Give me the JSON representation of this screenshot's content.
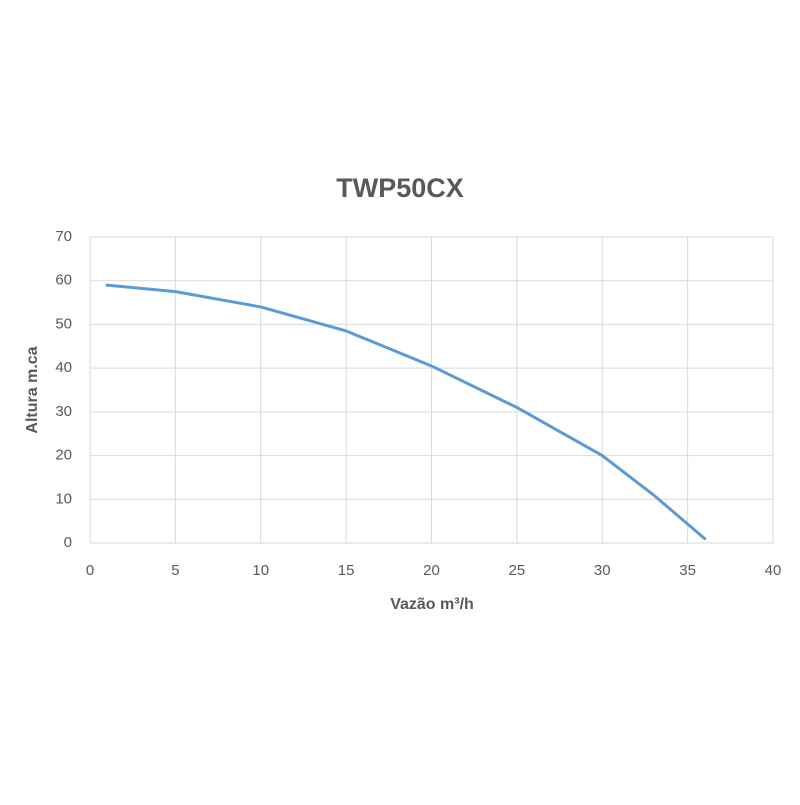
{
  "chart_data": {
    "type": "line",
    "title": "TWP50CX",
    "x_label": "Vazão m³/h",
    "y_label": "Altura m.ca",
    "x": [
      1,
      5,
      10,
      15,
      20,
      25,
      30,
      33,
      36
    ],
    "series": [
      {
        "name": "TWP50CX",
        "color": "#5b9bd5",
        "values": [
          59,
          57.5,
          54,
          48.5,
          40.5,
          31,
          20,
          11,
          1
        ]
      }
    ],
    "xlim": [
      0,
      40
    ],
    "xticks": [
      0,
      5,
      10,
      15,
      20,
      25,
      30,
      35,
      40
    ],
    "ylim": [
      0,
      70
    ],
    "yticks": [
      0,
      10,
      20,
      30,
      40,
      50,
      60,
      70
    ],
    "grid": true
  }
}
